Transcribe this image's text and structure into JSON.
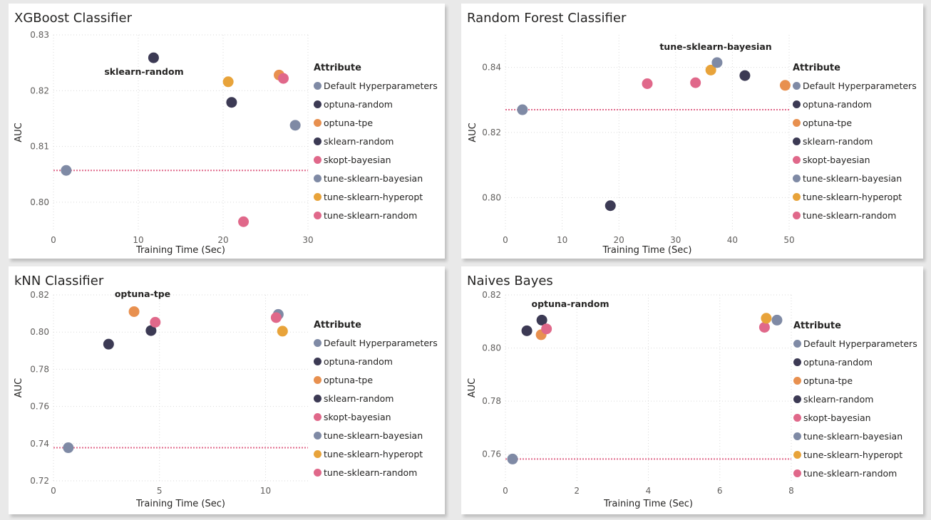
{
  "colors": {
    "Default Hyperparameters": "#7f8aa5",
    "optuna-random": "#3c3a54",
    "optuna-tpe": "#e8904f",
    "sklearn-random": "#3c3a54",
    "skopt-bayesian": "#e0688a",
    "tune-sklearn-bayesian": "#7f8aa5",
    "tune-sklearn-hyperopt": "#e8a33a",
    "tune-sklearn-random": "#e0688a"
  },
  "reference_line_color": "#e0688a",
  "chart_data": [
    {
      "type": "scatter",
      "title": "XGBoost Classifier",
      "xlabel": "Training Time (Sec)",
      "ylabel": "AUC",
      "xlim": [
        0,
        30
      ],
      "ylim": [
        0.795,
        0.83
      ],
      "xticks": [
        "0",
        "10",
        "20",
        "30"
      ],
      "yticks": [
        "0.80",
        "0.81",
        "0.82",
        "0.83"
      ],
      "legend_title": "Attribute",
      "legend": [
        "Default Hyperparameters",
        "optuna-random",
        "optuna-tpe",
        "sklearn-random",
        "skopt-bayesian",
        "tune-sklearn-bayesian",
        "tune-sklearn-hyperopt",
        "tune-sklearn-random"
      ],
      "annotation": "sklearn-random",
      "reference_line": 0.8057,
      "points": [
        {
          "series": "Default Hyperparameters",
          "x": 1.5,
          "y": 0.8057
        },
        {
          "series": "sklearn-random",
          "x": 11.8,
          "y": 0.8259
        },
        {
          "series": "tune-sklearn-hyperopt",
          "x": 20.6,
          "y": 0.8216
        },
        {
          "series": "optuna-random",
          "x": 21.0,
          "y": 0.8179
        },
        {
          "series": "optuna-tpe",
          "x": 26.6,
          "y": 0.8228
        },
        {
          "series": "skopt-bayesian",
          "x": 27.1,
          "y": 0.8222
        },
        {
          "series": "tune-sklearn-bayesian",
          "x": 28.5,
          "y": 0.8138
        },
        {
          "series": "tune-sklearn-random",
          "x": 22.4,
          "y": 0.7965
        }
      ]
    },
    {
      "type": "scatter",
      "title": "Random Forest Classifier",
      "xlabel": "Training Time (Sec)",
      "ylabel": "AUC",
      "xlim": [
        0,
        50
      ],
      "ylim": [
        0.79,
        0.85
      ],
      "xticks": [
        "0",
        "10",
        "20",
        "30",
        "40",
        "50"
      ],
      "yticks": [
        "0.80",
        "0.82",
        "0.84"
      ],
      "legend_title": "Attribute",
      "legend": [
        "Default Hyperparameters",
        "optuna-random",
        "optuna-tpe",
        "sklearn-random",
        "skopt-bayesian",
        "tune-sklearn-bayesian",
        "tune-sklearn-hyperopt",
        "tune-sklearn-random"
      ],
      "annotation": "tune-sklearn-bayesian",
      "reference_line": 0.827,
      "points": [
        {
          "series": "Default Hyperparameters",
          "x": 3.0,
          "y": 0.827
        },
        {
          "series": "sklearn-random",
          "x": 18.5,
          "y": 0.7975
        },
        {
          "series": "skopt-bayesian",
          "x": 25.0,
          "y": 0.835
        },
        {
          "series": "tune-sklearn-random",
          "x": 33.5,
          "y": 0.8353
        },
        {
          "series": "tune-sklearn-hyperopt",
          "x": 36.2,
          "y": 0.8392
        },
        {
          "series": "tune-sklearn-bayesian",
          "x": 37.3,
          "y": 0.8415
        },
        {
          "series": "optuna-random",
          "x": 42.2,
          "y": 0.8375
        },
        {
          "series": "optuna-tpe",
          "x": 49.3,
          "y": 0.8345
        }
      ]
    },
    {
      "type": "scatter",
      "title": "kNN Classifier",
      "xlabel": "Training Time (Sec)",
      "ylabel": "AUC",
      "xlim": [
        0,
        12
      ],
      "ylim": [
        0.72,
        0.82
      ],
      "xticks": [
        "0",
        "5",
        "10"
      ],
      "yticks": [
        "0.72",
        "0.74",
        "0.76",
        "0.78",
        "0.80",
        "0.82"
      ],
      "legend_title": "Attribute",
      "legend": [
        "Default Hyperparameters",
        "optuna-random",
        "optuna-tpe",
        "sklearn-random",
        "skopt-bayesian",
        "tune-sklearn-bayesian",
        "tune-sklearn-hyperopt",
        "tune-sklearn-random"
      ],
      "annotation": "optuna-tpe",
      "reference_line": 0.7378,
      "points": [
        {
          "series": "Default Hyperparameters",
          "x": 0.7,
          "y": 0.7378
        },
        {
          "series": "sklearn-random",
          "x": 2.6,
          "y": 0.7935
        },
        {
          "series": "optuna-tpe",
          "x": 3.8,
          "y": 0.811
        },
        {
          "series": "optuna-random",
          "x": 4.6,
          "y": 0.8008
        },
        {
          "series": "skopt-bayesian",
          "x": 4.8,
          "y": 0.8053
        },
        {
          "series": "tune-sklearn-bayesian",
          "x": 10.6,
          "y": 0.8095
        },
        {
          "series": "tune-sklearn-random",
          "x": 10.5,
          "y": 0.8078
        },
        {
          "series": "tune-sklearn-hyperopt",
          "x": 10.8,
          "y": 0.8005
        }
      ]
    },
    {
      "type": "scatter",
      "title": "Naives Bayes",
      "xlabel": "Training Time (Sec)",
      "ylabel": "AUC",
      "xlim": [
        0,
        8
      ],
      "ylim": [
        0.75,
        0.82
      ],
      "xticks": [
        "0",
        "2",
        "4",
        "6",
        "8"
      ],
      "yticks": [
        "0.76",
        "0.78",
        "0.80",
        "0.82"
      ],
      "legend_title": "Attribute",
      "legend": [
        "Default Hyperparameters",
        "optuna-random",
        "optuna-tpe",
        "sklearn-random",
        "skopt-bayesian",
        "tune-sklearn-bayesian",
        "tune-sklearn-hyperopt",
        "tune-sklearn-random"
      ],
      "annotation": "optuna-random",
      "reference_line": 0.7582,
      "points": [
        {
          "series": "Default Hyperparameters",
          "x": 0.2,
          "y": 0.7582
        },
        {
          "series": "sklearn-random",
          "x": 0.6,
          "y": 0.8065
        },
        {
          "series": "optuna-random",
          "x": 1.02,
          "y": 0.8105
        },
        {
          "series": "optuna-tpe",
          "x": 1.0,
          "y": 0.805
        },
        {
          "series": "skopt-bayesian",
          "x": 1.15,
          "y": 0.8072
        },
        {
          "series": "tune-sklearn-random",
          "x": 7.25,
          "y": 0.8078
        },
        {
          "series": "tune-sklearn-hyperopt",
          "x": 7.3,
          "y": 0.8112
        },
        {
          "series": "tune-sklearn-bayesian",
          "x": 7.6,
          "y": 0.8105
        }
      ]
    }
  ]
}
